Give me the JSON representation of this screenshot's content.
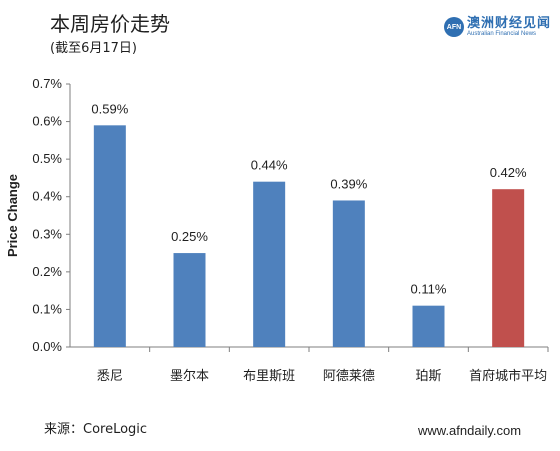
{
  "header": {
    "title": "本周房价走势",
    "subtitle": "(截至6月17日)"
  },
  "brand": {
    "logo_text": "AFN",
    "name_cn": "澳洲财经见闻",
    "name_en": "Australian Financial News",
    "color": "#2f6fb2"
  },
  "footer": {
    "source": "来源：CoreLogic",
    "site": "www.afndaily.com"
  },
  "chart_data": {
    "type": "bar",
    "ylabel": "Price Change",
    "ylim": [
      0,
      0.7
    ],
    "yticks": [
      0,
      0.1,
      0.2,
      0.3,
      0.4,
      0.5,
      0.6,
      0.7
    ],
    "ytick_labels": [
      "0.0%",
      "0.1%",
      "0.2%",
      "0.3%",
      "0.4%",
      "0.5%",
      "0.6%",
      "0.7%"
    ],
    "categories": [
      "悉尼",
      "墨尔本",
      "布里斯班",
      "阿德莱德",
      "珀斯",
      "首府城市平均"
    ],
    "values": [
      0.59,
      0.25,
      0.44,
      0.39,
      0.11,
      0.42
    ],
    "data_labels": [
      "0.59%",
      "0.25%",
      "0.44%",
      "0.39%",
      "0.11%",
      "0.42%"
    ],
    "colors": [
      "#4f81bd",
      "#4f81bd",
      "#4f81bd",
      "#4f81bd",
      "#4f81bd",
      "#c0504d"
    ],
    "grid": false,
    "legend": "none"
  }
}
